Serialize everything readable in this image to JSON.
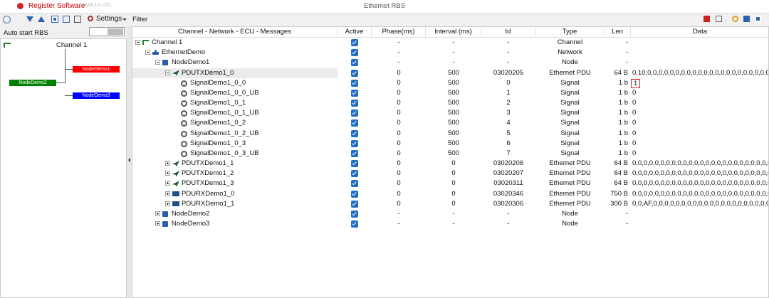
{
  "header": {
    "app_name": "Register Software",
    "version": "2025.1.0.1271",
    "window_title": "Ethernet RBS"
  },
  "toolbar": {
    "settings": "Settings"
  },
  "left_panel": {
    "auto_start": "Auto start RBS",
    "topology": {
      "channel": "Channel 1",
      "nodes": [
        {
          "label": "NodeDemo1",
          "color": "#ff0000"
        },
        {
          "label": "NodeDemo2",
          "color": "#008000"
        },
        {
          "label": "NodeDemo3",
          "color": "#0000ff"
        }
      ]
    }
  },
  "filter": {
    "label": "Filter"
  },
  "table": {
    "columns": [
      "Channel - Network - ECU - Messages",
      "Active",
      "Phase(ms)",
      "Interval (ms)",
      "Id",
      "Type",
      "Len",
      "Data"
    ],
    "selected_row": 3,
    "rows": [
      {
        "level": 0,
        "expander": "expanded",
        "icon": "channel",
        "name": "Channel 1",
        "phase": "-",
        "interval": "-",
        "id": "-",
        "type": "Channel",
        "len": "-"
      },
      {
        "level": 1,
        "expander": "expanded",
        "icon": "network",
        "name": "EthernetDemo",
        "phase": "-",
        "interval": "-",
        "id": "-",
        "type": "Network",
        "len": "-"
      },
      {
        "level": 2,
        "expander": "expanded",
        "icon": "node",
        "name": "NodeDemo1",
        "phase": "-",
        "interval": "-",
        "id": "-",
        "type": "Node",
        "len": "-"
      },
      {
        "level": 3,
        "expander": "expanded",
        "icon": "tx",
        "name": "PDUTXDemo1_0",
        "phase": "0",
        "interval": "500",
        "id": "03020205",
        "type": "Ethernet PDU",
        "len": "64 B",
        "data": "0,10,0,0,0,0,0,0,0,0,0,0,0,0,0,0,0,0,0,0,0,0,0,0,0,0,0,0,0,0,0,0,0,0"
      },
      {
        "level": 4,
        "icon": "signal",
        "name": "SignalDemo1_0_0",
        "phase": "0",
        "interval": "500",
        "id": "0",
        "type": "Signal",
        "len": "1 b",
        "data": "1",
        "boxed": true
      },
      {
        "level": 4,
        "icon": "signal",
        "name": "SignalDemo1_0_0_UB",
        "phase": "0",
        "interval": "500",
        "id": "1",
        "type": "Signal",
        "len": "1 b",
        "data": "0"
      },
      {
        "level": 4,
        "icon": "signal",
        "name": "SignalDemo1_0_1",
        "phase": "0",
        "interval": "500",
        "id": "2",
        "type": "Signal",
        "len": "1 b",
        "data": "0"
      },
      {
        "level": 4,
        "icon": "signal",
        "name": "SignalDemo1_0_1_UB",
        "phase": "0",
        "interval": "500",
        "id": "3",
        "type": "Signal",
        "len": "1 b",
        "data": "0"
      },
      {
        "level": 4,
        "icon": "signal",
        "name": "SignalDemo1_0_2",
        "phase": "0",
        "interval": "500",
        "id": "4",
        "type": "Signal",
        "len": "1 b",
        "data": "0"
      },
      {
        "level": 4,
        "icon": "signal",
        "name": "SignalDemo1_0_2_UB",
        "phase": "0",
        "interval": "500",
        "id": "5",
        "type": "Signal",
        "len": "1 b",
        "data": "0"
      },
      {
        "level": 4,
        "icon": "signal",
        "name": "SignalDemo1_0_3",
        "phase": "0",
        "interval": "500",
        "id": "6",
        "type": "Signal",
        "len": "1 b",
        "data": "0"
      },
      {
        "level": 4,
        "icon": "signal",
        "name": "SignalDemo1_0_3_UB",
        "phase": "0",
        "interval": "500",
        "id": "7",
        "type": "Signal",
        "len": "1 b",
        "data": "0"
      },
      {
        "level": 3,
        "expander": "collapsed",
        "icon": "tx",
        "name": "PDUTXDemo1_1",
        "phase": "0",
        "interval": "0",
        "id": "03020206",
        "type": "Ethernet PDU",
        "len": "64 B",
        "data": "0,0,0,0,0,0,0,0,0,0,0,0,0,0,0,0,0,0,0,0,0,0,0,0,0,0,0,0,0,0,0,0,0,0,0"
      },
      {
        "level": 3,
        "expander": "collapsed",
        "icon": "tx",
        "name": "PDUTXDemo1_2",
        "phase": "0",
        "interval": "0",
        "id": "03020207",
        "type": "Ethernet PDU",
        "len": "64 B",
        "data": "0,0,0,0,0,0,0,0,0,0,0,0,0,0,0,0,0,0,0,0,0,0,0,0,0,0,0,0,0,0,0,0,0,0,0"
      },
      {
        "level": 3,
        "expander": "collapsed",
        "icon": "tx",
        "name": "PDUTXDemo1_3",
        "phase": "0",
        "interval": "0",
        "id": "03020311",
        "type": "Ethernet PDU",
        "len": "64 B",
        "data": "0,0,0,0,0,0,0,0,0,0,0,0,0,0,0,0,0,0,0,0,0,0,0,0,0,0,0,0,0,0,0,0,0,0,0"
      },
      {
        "level": 3,
        "expander": "collapsed",
        "icon": "rx",
        "name": "PDURXDemo1_0",
        "phase": "0",
        "interval": "0",
        "id": "03020346",
        "type": "Ethernet PDU",
        "len": "750 B",
        "data": "0,0,0,0,0,0,0,0,0,0,0,0,0,0,0,0,0,0,0,0,0,0,0,0,0,0,0,0,0,0,0,0,0,0,0"
      },
      {
        "level": 3,
        "expander": "collapsed",
        "icon": "rx",
        "name": "PDURXDemo1_1",
        "phase": "0",
        "interval": "0",
        "id": "03020306",
        "type": "Ethernet PDU",
        "len": "300 B",
        "data": "0,0,AF,0,0,0,0,0,0,0,0,0,0,0,0,0,0,0,0,0,0,0,0,0,0,0,0,0,0,0,0,0,0"
      },
      {
        "level": 2,
        "expander": "collapsed",
        "icon": "node",
        "name": "NodeDemo2",
        "phase": "-",
        "interval": "-",
        "id": "-",
        "type": "Node",
        "len": "-"
      },
      {
        "level": 2,
        "expander": "collapsed",
        "icon": "node",
        "name": "NodeDemo3",
        "phase": "-",
        "interval": "-",
        "id": "-",
        "type": "Node",
        "len": "-"
      }
    ]
  }
}
